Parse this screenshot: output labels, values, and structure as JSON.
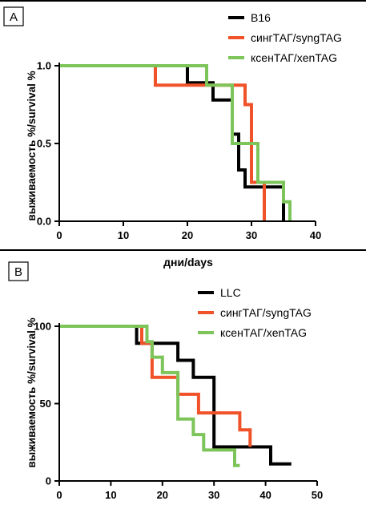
{
  "colors": {
    "black_series": "#000000",
    "red_series": "#f0522a",
    "green_series": "#7dc55a"
  },
  "chart_data": [
    {
      "panel_label": "A",
      "type": "line",
      "step": true,
      "xlabel": "дни/days",
      "ylabel": "выживаемость %/survival %",
      "xlim": [
        0,
        40
      ],
      "ylim": [
        0,
        1.0
      ],
      "xticks": [
        "0",
        "10",
        "20",
        "30",
        "40"
      ],
      "yticks": [
        "0.0",
        "0.5",
        "1.0"
      ],
      "legend_position": "top-right",
      "series": [
        {
          "name": "B16",
          "color": "#000000",
          "x": [
            0,
            20,
            20,
            24,
            24,
            27,
            27,
            28,
            28,
            29,
            29,
            35,
            35
          ],
          "y": [
            1.0,
            1.0,
            0.89,
            0.89,
            0.78,
            0.78,
            0.56,
            0.56,
            0.33,
            0.33,
            0.22,
            0.22,
            0
          ]
        },
        {
          "name": "сингТАГ/syngTAG",
          "color": "#f0522a",
          "x": [
            0,
            15,
            15,
            29,
            29,
            30,
            30,
            32,
            32
          ],
          "y": [
            1.0,
            1.0,
            0.875,
            0.875,
            0.75,
            0.75,
            0.25,
            0.25,
            0
          ]
        },
        {
          "name": "ксенТАГ/xenTAG",
          "color": "#7dc55a",
          "x": [
            0,
            23,
            23,
            27,
            27,
            31,
            31,
            35,
            35,
            36,
            36
          ],
          "y": [
            1.0,
            1.0,
            0.875,
            0.875,
            0.5,
            0.5,
            0.25,
            0.25,
            0.125,
            0.125,
            0
          ]
        }
      ]
    },
    {
      "panel_label": "B",
      "type": "line",
      "step": true,
      "xlabel": "",
      "ylabel": "выживаемость %/survival %",
      "xlim": [
        0,
        50
      ],
      "ylim": [
        0,
        100
      ],
      "xticks": [
        "0",
        "10",
        "20",
        "30",
        "40",
        "50"
      ],
      "yticks": [
        "0",
        "50",
        "100"
      ],
      "legend_position": "top-right",
      "series": [
        {
          "name": "LLC",
          "color": "#000000",
          "x": [
            0,
            15,
            15,
            23,
            23,
            26,
            26,
            30,
            30,
            41,
            41,
            45
          ],
          "y": [
            100,
            100,
            89,
            89,
            78,
            78,
            67,
            67,
            22,
            22,
            11,
            11
          ]
        },
        {
          "name": "сингТАГ/syngTAG",
          "color": "#f0522a",
          "x": [
            0,
            16,
            16,
            18,
            18,
            23,
            23,
            27,
            27,
            35,
            35,
            37,
            37
          ],
          "y": [
            100,
            100,
            89,
            89,
            67,
            67,
            56,
            56,
            44,
            44,
            33,
            33,
            22
          ]
        },
        {
          "name": "ксенТАГ/xenTAG",
          "color": "#7dc55a",
          "x": [
            0,
            17,
            17,
            18,
            18,
            20,
            20,
            23,
            23,
            26,
            26,
            28,
            28,
            34,
            34,
            35
          ],
          "y": [
            100,
            100,
            90,
            90,
            80,
            80,
            70,
            70,
            40,
            40,
            30,
            30,
            20,
            20,
            10,
            10
          ]
        }
      ]
    }
  ]
}
